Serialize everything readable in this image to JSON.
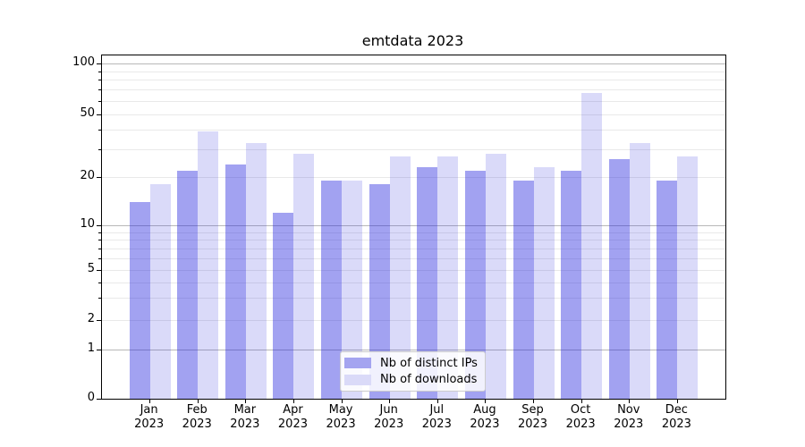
{
  "title": "emtdata 2023",
  "chart_data": {
    "type": "bar",
    "title": "emtdata 2023",
    "categories": [
      "Jan",
      "Feb",
      "Mar",
      "Apr",
      "May",
      "Jun",
      "Jul",
      "Aug",
      "Sep",
      "Oct",
      "Nov",
      "Dec"
    ],
    "year_label": "2023",
    "series": [
      {
        "name": "Nb of distinct IPs",
        "fill": "rgba(34,34,221,0.42)",
        "legend_color": "#a4a4f0",
        "values": [
          14,
          22,
          24,
          12,
          19,
          18,
          23,
          22,
          19,
          22,
          26,
          19
        ]
      },
      {
        "name": "Nb of downloads",
        "fill": "rgba(34,34,221,0.17)",
        "legend_color": "#dadaf8",
        "values": [
          18,
          39,
          33,
          28,
          19,
          27,
          27,
          28,
          23,
          67,
          33,
          27
        ]
      }
    ],
    "yscale": "symlog",
    "yticks": [
      0,
      1,
      2,
      5,
      10,
      20,
      50,
      100
    ],
    "minor_gridlines": [
      2,
      3,
      4,
      5,
      6,
      7,
      8,
      9,
      20,
      30,
      40,
      50,
      60,
      70,
      80,
      90
    ],
    "major_gridlines": [
      1,
      10,
      100
    ],
    "ylim": [
      0,
      113
    ],
    "grid": true,
    "legend_position": "lower center",
    "colors": {
      "grid_major": "#b8b8b8",
      "grid_minor": "#e9e9e9",
      "spine": "#000000",
      "background": "#ffffff"
    }
  }
}
